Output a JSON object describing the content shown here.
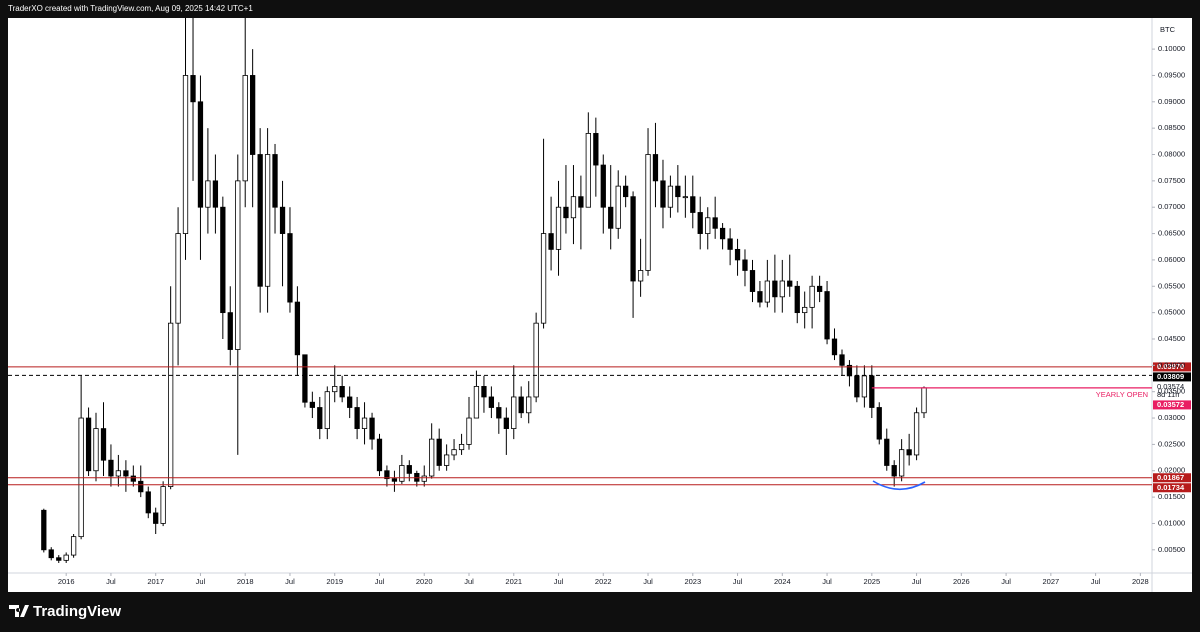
{
  "header": {
    "text": "TraderXO created with TradingView.com, Aug 09, 2025 14:42 UTC+1"
  },
  "footer": {
    "brand": "TradingView"
  },
  "chart_data": {
    "type": "candlestick",
    "symbol": "BTC",
    "up_color": "#ffffff",
    "down_color": "#000000",
    "border_color": "#000000",
    "xlim": [
      2015.35,
      2028.13
    ],
    "ylim": [
      0.0006,
      0.1059
    ],
    "xticks": [
      2016,
      {
        "value": 2016.5,
        "label": "Jul"
      },
      2017,
      {
        "value": 2017.5,
        "label": "Jul"
      },
      2018,
      {
        "value": 2018.5,
        "label": "Jul"
      },
      2019,
      {
        "value": 2019.5,
        "label": "Jul"
      },
      2020,
      {
        "value": 2020.5,
        "label": "Jul"
      },
      2021,
      {
        "value": 2021.5,
        "label": "Jul"
      },
      2022,
      {
        "value": 2022.5,
        "label": "Jul"
      },
      2023,
      {
        "value": 2023.5,
        "label": "Jul"
      },
      2024,
      {
        "value": 2024.5,
        "label": "Jul"
      },
      2025,
      {
        "value": 2025.5,
        "label": "Jul"
      },
      2026,
      {
        "value": 2026.5,
        "label": "Jul"
      },
      2027,
      {
        "value": 2027.5,
        "label": "Jul"
      },
      2028
    ],
    "yticks": [
      {
        "value": 0.005,
        "label": "0.00500"
      },
      {
        "value": 0.01,
        "label": "0.01000"
      },
      {
        "value": 0.015,
        "label": "0.01500"
      },
      {
        "value": 0.02,
        "label": "0.02000"
      },
      {
        "value": 0.025,
        "label": "0.02500"
      },
      {
        "value": 0.03,
        "label": "0.03000"
      },
      {
        "value": 0.035,
        "label": "0.03500"
      },
      {
        "value": 0.04,
        "label": "0.04000"
      },
      {
        "value": 0.045,
        "label": "0.04500"
      },
      {
        "value": 0.05,
        "label": "0.05000"
      },
      {
        "value": 0.055,
        "label": "0.05500"
      },
      {
        "value": 0.06,
        "label": "0.06000"
      },
      {
        "value": 0.065,
        "label": "0.06500"
      },
      {
        "value": 0.07,
        "label": "0.07000"
      },
      {
        "value": 0.075,
        "label": "0.07500"
      },
      {
        "value": 0.08,
        "label": "0.08000"
      },
      {
        "value": 0.085,
        "label": "0.08500"
      },
      {
        "value": 0.09,
        "label": "0.09000"
      },
      {
        "value": 0.095,
        "label": "0.09500"
      },
      {
        "value": 0.1,
        "label": "0.10000"
      }
    ],
    "x": [
      2015.75,
      2015.833,
      2015.917,
      2016.0,
      2016.083,
      2016.167,
      2016.25,
      2016.333,
      2016.417,
      2016.5,
      2016.583,
      2016.667,
      2016.75,
      2016.833,
      2016.917,
      2017.0,
      2017.083,
      2017.167,
      2017.25,
      2017.333,
      2017.417,
      2017.5,
      2017.583,
      2017.667,
      2017.75,
      2017.833,
      2017.917,
      2018.0,
      2018.083,
      2018.167,
      2018.25,
      2018.333,
      2018.417,
      2018.5,
      2018.583,
      2018.667,
      2018.75,
      2018.833,
      2018.917,
      2019.0,
      2019.083,
      2019.167,
      2019.25,
      2019.333,
      2019.417,
      2019.5,
      2019.583,
      2019.667,
      2019.75,
      2019.833,
      2019.917,
      2020.0,
      2020.083,
      2020.167,
      2020.25,
      2020.333,
      2020.417,
      2020.5,
      2020.583,
      2020.667,
      2020.75,
      2020.833,
      2020.917,
      2021.0,
      2021.083,
      2021.167,
      2021.25,
      2021.333,
      2021.417,
      2021.5,
      2021.583,
      2021.667,
      2021.75,
      2021.833,
      2021.917,
      2022.0,
      2022.083,
      2022.167,
      2022.25,
      2022.333,
      2022.417,
      2022.5,
      2022.583,
      2022.667,
      2022.75,
      2022.833,
      2022.917,
      2023.0,
      2023.083,
      2023.167,
      2023.25,
      2023.333,
      2023.417,
      2023.5,
      2023.583,
      2023.667,
      2023.75,
      2023.833,
      2023.917,
      2024.0,
      2024.083,
      2024.167,
      2024.25,
      2024.333,
      2024.417,
      2024.5,
      2024.583,
      2024.667,
      2024.75,
      2024.833,
      2024.917,
      2025.0,
      2025.083,
      2025.167,
      2025.25,
      2025.333,
      2025.417,
      2025.5,
      2025.583
    ],
    "open": [
      0.0125,
      0.005,
      0.0035,
      0.003,
      0.004,
      0.0075,
      0.03,
      0.02,
      0.028,
      0.022,
      0.019,
      0.02,
      0.019,
      0.018,
      0.016,
      0.012,
      0.01,
      0.017,
      0.048,
      0.065,
      0.095,
      0.09,
      0.07,
      0.075,
      0.07,
      0.05,
      0.043,
      0.075,
      0.095,
      0.08,
      0.055,
      0.08,
      0.07,
      0.065,
      0.052,
      0.042,
      0.033,
      0.032,
      0.028,
      0.035,
      0.036,
      0.034,
      0.032,
      0.028,
      0.03,
      0.026,
      0.02,
      0.0185,
      0.018,
      0.021,
      0.0195,
      0.018,
      0.019,
      0.026,
      0.021,
      0.023,
      0.024,
      0.025,
      0.03,
      0.036,
      0.034,
      0.032,
      0.03,
      0.028,
      0.034,
      0.031,
      0.034,
      0.048,
      0.065,
      0.062,
      0.07,
      0.068,
      0.072,
      0.07,
      0.084,
      0.078,
      0.07,
      0.066,
      0.074,
      0.072,
      0.056,
      0.058,
      0.08,
      0.075,
      0.07,
      0.074,
      0.072,
      0.072,
      0.069,
      0.065,
      0.068,
      0.066,
      0.064,
      0.062,
      0.06,
      0.058,
      0.054,
      0.052,
      0.056,
      0.053,
      0.056,
      0.055,
      0.05,
      0.051,
      0.055,
      0.054,
      0.045,
      0.042,
      0.04,
      0.038,
      0.034,
      0.038,
      0.032,
      0.026,
      0.021,
      0.019,
      0.024,
      0.023,
      0.031
    ],
    "high": [
      0.0128,
      0.0055,
      0.004,
      0.0045,
      0.008,
      0.038,
      0.032,
      0.031,
      0.033,
      0.025,
      0.023,
      0.022,
      0.021,
      0.021,
      0.017,
      0.013,
      0.018,
      0.055,
      0.07,
      0.106,
      0.106,
      0.095,
      0.085,
      0.08,
      0.072,
      0.055,
      0.08,
      0.106,
      0.1,
      0.085,
      0.085,
      0.082,
      0.075,
      0.07,
      0.055,
      0.042,
      0.035,
      0.034,
      0.036,
      0.04,
      0.038,
      0.036,
      0.034,
      0.033,
      0.031,
      0.027,
      0.021,
      0.02,
      0.023,
      0.022,
      0.02,
      0.021,
      0.029,
      0.028,
      0.025,
      0.026,
      0.027,
      0.034,
      0.039,
      0.038,
      0.036,
      0.033,
      0.032,
      0.04,
      0.036,
      0.037,
      0.05,
      0.083,
      0.072,
      0.075,
      0.078,
      0.078,
      0.076,
      0.088,
      0.087,
      0.08,
      0.078,
      0.077,
      0.076,
      0.073,
      0.064,
      0.085,
      0.086,
      0.079,
      0.076,
      0.078,
      0.076,
      0.076,
      0.072,
      0.07,
      0.072,
      0.067,
      0.066,
      0.064,
      0.062,
      0.06,
      0.056,
      0.06,
      0.061,
      0.06,
      0.061,
      0.056,
      0.054,
      0.057,
      0.057,
      0.056,
      0.047,
      0.043,
      0.041,
      0.04,
      0.04,
      0.04,
      0.033,
      0.028,
      0.022,
      0.026,
      0.027,
      0.032,
      0.036
    ],
    "low": [
      0.0045,
      0.003,
      0.0025,
      0.0025,
      0.0035,
      0.007,
      0.019,
      0.018,
      0.019,
      0.017,
      0.017,
      0.016,
      0.017,
      0.015,
      0.011,
      0.008,
      0.0095,
      0.0165,
      0.04,
      0.06,
      0.075,
      0.06,
      0.065,
      0.065,
      0.045,
      0.04,
      0.023,
      0.07,
      0.07,
      0.05,
      0.05,
      0.065,
      0.055,
      0.05,
      0.038,
      0.032,
      0.03,
      0.026,
      0.026,
      0.033,
      0.033,
      0.03,
      0.026,
      0.025,
      0.024,
      0.019,
      0.017,
      0.016,
      0.0175,
      0.018,
      0.017,
      0.017,
      0.0185,
      0.02,
      0.02,
      0.022,
      0.023,
      0.024,
      0.03,
      0.031,
      0.03,
      0.027,
      0.023,
      0.026,
      0.03,
      0.029,
      0.033,
      0.047,
      0.058,
      0.057,
      0.065,
      0.063,
      0.062,
      0.07,
      0.072,
      0.065,
      0.062,
      0.064,
      0.07,
      0.049,
      0.053,
      0.057,
      0.07,
      0.066,
      0.068,
      0.069,
      0.068,
      0.066,
      0.062,
      0.062,
      0.064,
      0.062,
      0.059,
      0.057,
      0.055,
      0.052,
      0.051,
      0.051,
      0.05,
      0.05,
      0.053,
      0.048,
      0.047,
      0.047,
      0.052,
      0.044,
      0.041,
      0.038,
      0.036,
      0.033,
      0.032,
      0.03,
      0.025,
      0.02,
      0.017,
      0.018,
      0.021,
      0.022,
      0.03
    ],
    "close": [
      0.005,
      0.0035,
      0.003,
      0.004,
      0.0075,
      0.03,
      0.02,
      0.028,
      0.022,
      0.019,
      0.02,
      0.019,
      0.018,
      0.016,
      0.012,
      0.01,
      0.017,
      0.048,
      0.065,
      0.095,
      0.09,
      0.07,
      0.075,
      0.07,
      0.05,
      0.043,
      0.075,
      0.095,
      0.08,
      0.055,
      0.08,
      0.07,
      0.065,
      0.052,
      0.042,
      0.033,
      0.032,
      0.028,
      0.035,
      0.036,
      0.034,
      0.032,
      0.028,
      0.03,
      0.026,
      0.02,
      0.0185,
      0.018,
      0.021,
      0.0195,
      0.018,
      0.019,
      0.026,
      0.021,
      0.023,
      0.024,
      0.025,
      0.03,
      0.036,
      0.034,
      0.032,
      0.03,
      0.028,
      0.034,
      0.031,
      0.034,
      0.048,
      0.065,
      0.062,
      0.07,
      0.068,
      0.072,
      0.07,
      0.084,
      0.078,
      0.07,
      0.066,
      0.074,
      0.072,
      0.056,
      0.058,
      0.08,
      0.075,
      0.07,
      0.074,
      0.072,
      0.072,
      0.069,
      0.065,
      0.068,
      0.066,
      0.064,
      0.062,
      0.06,
      0.058,
      0.054,
      0.052,
      0.056,
      0.053,
      0.056,
      0.055,
      0.05,
      0.051,
      0.055,
      0.054,
      0.045,
      0.042,
      0.04,
      0.038,
      0.034,
      0.038,
      0.032,
      0.026,
      0.021,
      0.019,
      0.024,
      0.023,
      0.031,
      0.03574
    ],
    "levels": [
      {
        "value": 0.0397,
        "label": "0.03970",
        "color": "#b71c1c",
        "dashed": false
      },
      {
        "value": 0.03809,
        "label": "0.03809",
        "color": "#000000",
        "dashed": true
      },
      {
        "value": 0.01867,
        "label": "0.01867",
        "color": "#b71c1c",
        "dashed": false
      },
      {
        "value": 0.01734,
        "label": "0.01734",
        "color": "#b71c1c",
        "dashed": false
      }
    ],
    "last_price": {
      "value": 0.03574,
      "label": "0.03574",
      "countdown": "8d 11h"
    },
    "yearly_open": {
      "value": 0.03572,
      "label": "0.03572",
      "name": "YEARLY OPEN",
      "color": "#e91e63",
      "start": 2025
    }
  }
}
